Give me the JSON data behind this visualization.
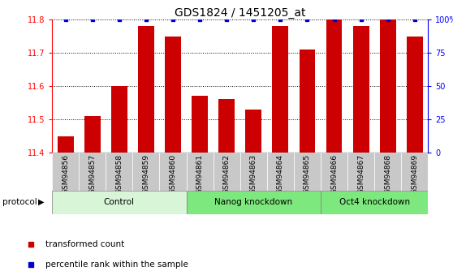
{
  "title": "GDS1824 / 1451205_at",
  "samples": [
    "GSM94856",
    "GSM94857",
    "GSM94858",
    "GSM94859",
    "GSM94860",
    "GSM94861",
    "GSM94862",
    "GSM94863",
    "GSM94864",
    "GSM94865",
    "GSM94866",
    "GSM94867",
    "GSM94868",
    "GSM94869"
  ],
  "red_values": [
    11.45,
    11.51,
    11.6,
    11.78,
    11.75,
    11.57,
    11.56,
    11.53,
    11.78,
    11.71,
    11.8,
    11.78,
    11.8,
    11.75
  ],
  "blue_values": [
    100,
    100,
    100,
    100,
    100,
    100,
    100,
    100,
    100,
    100,
    100,
    100,
    100,
    100
  ],
  "ylim_left": [
    11.4,
    11.8
  ],
  "ylim_right": [
    0,
    100
  ],
  "yticks_left": [
    11.4,
    11.5,
    11.6,
    11.7,
    11.8
  ],
  "yticks_right": [
    0,
    25,
    50,
    75,
    100
  ],
  "bar_color_red": "#cc0000",
  "bar_color_blue": "#0000cc",
  "control_bg": "#d8f5d8",
  "nanog_bg": "#7de87d",
  "oct4_bg": "#7de87d",
  "tick_bg_color": "#c8c8c8",
  "legend_red": "transformed count",
  "legend_blue": "percentile rank within the sample",
  "title_fontsize": 10,
  "tick_fontsize": 7,
  "groups": [
    {
      "label": "Control",
      "start": 0,
      "end": 5,
      "color": "#c8f0c8"
    },
    {
      "label": "Nanog knockdown",
      "start": 5,
      "end": 10,
      "color": "#6edc6e"
    },
    {
      "label": "Oct4 knockdown",
      "start": 10,
      "end": 14,
      "color": "#6edc6e"
    }
  ]
}
